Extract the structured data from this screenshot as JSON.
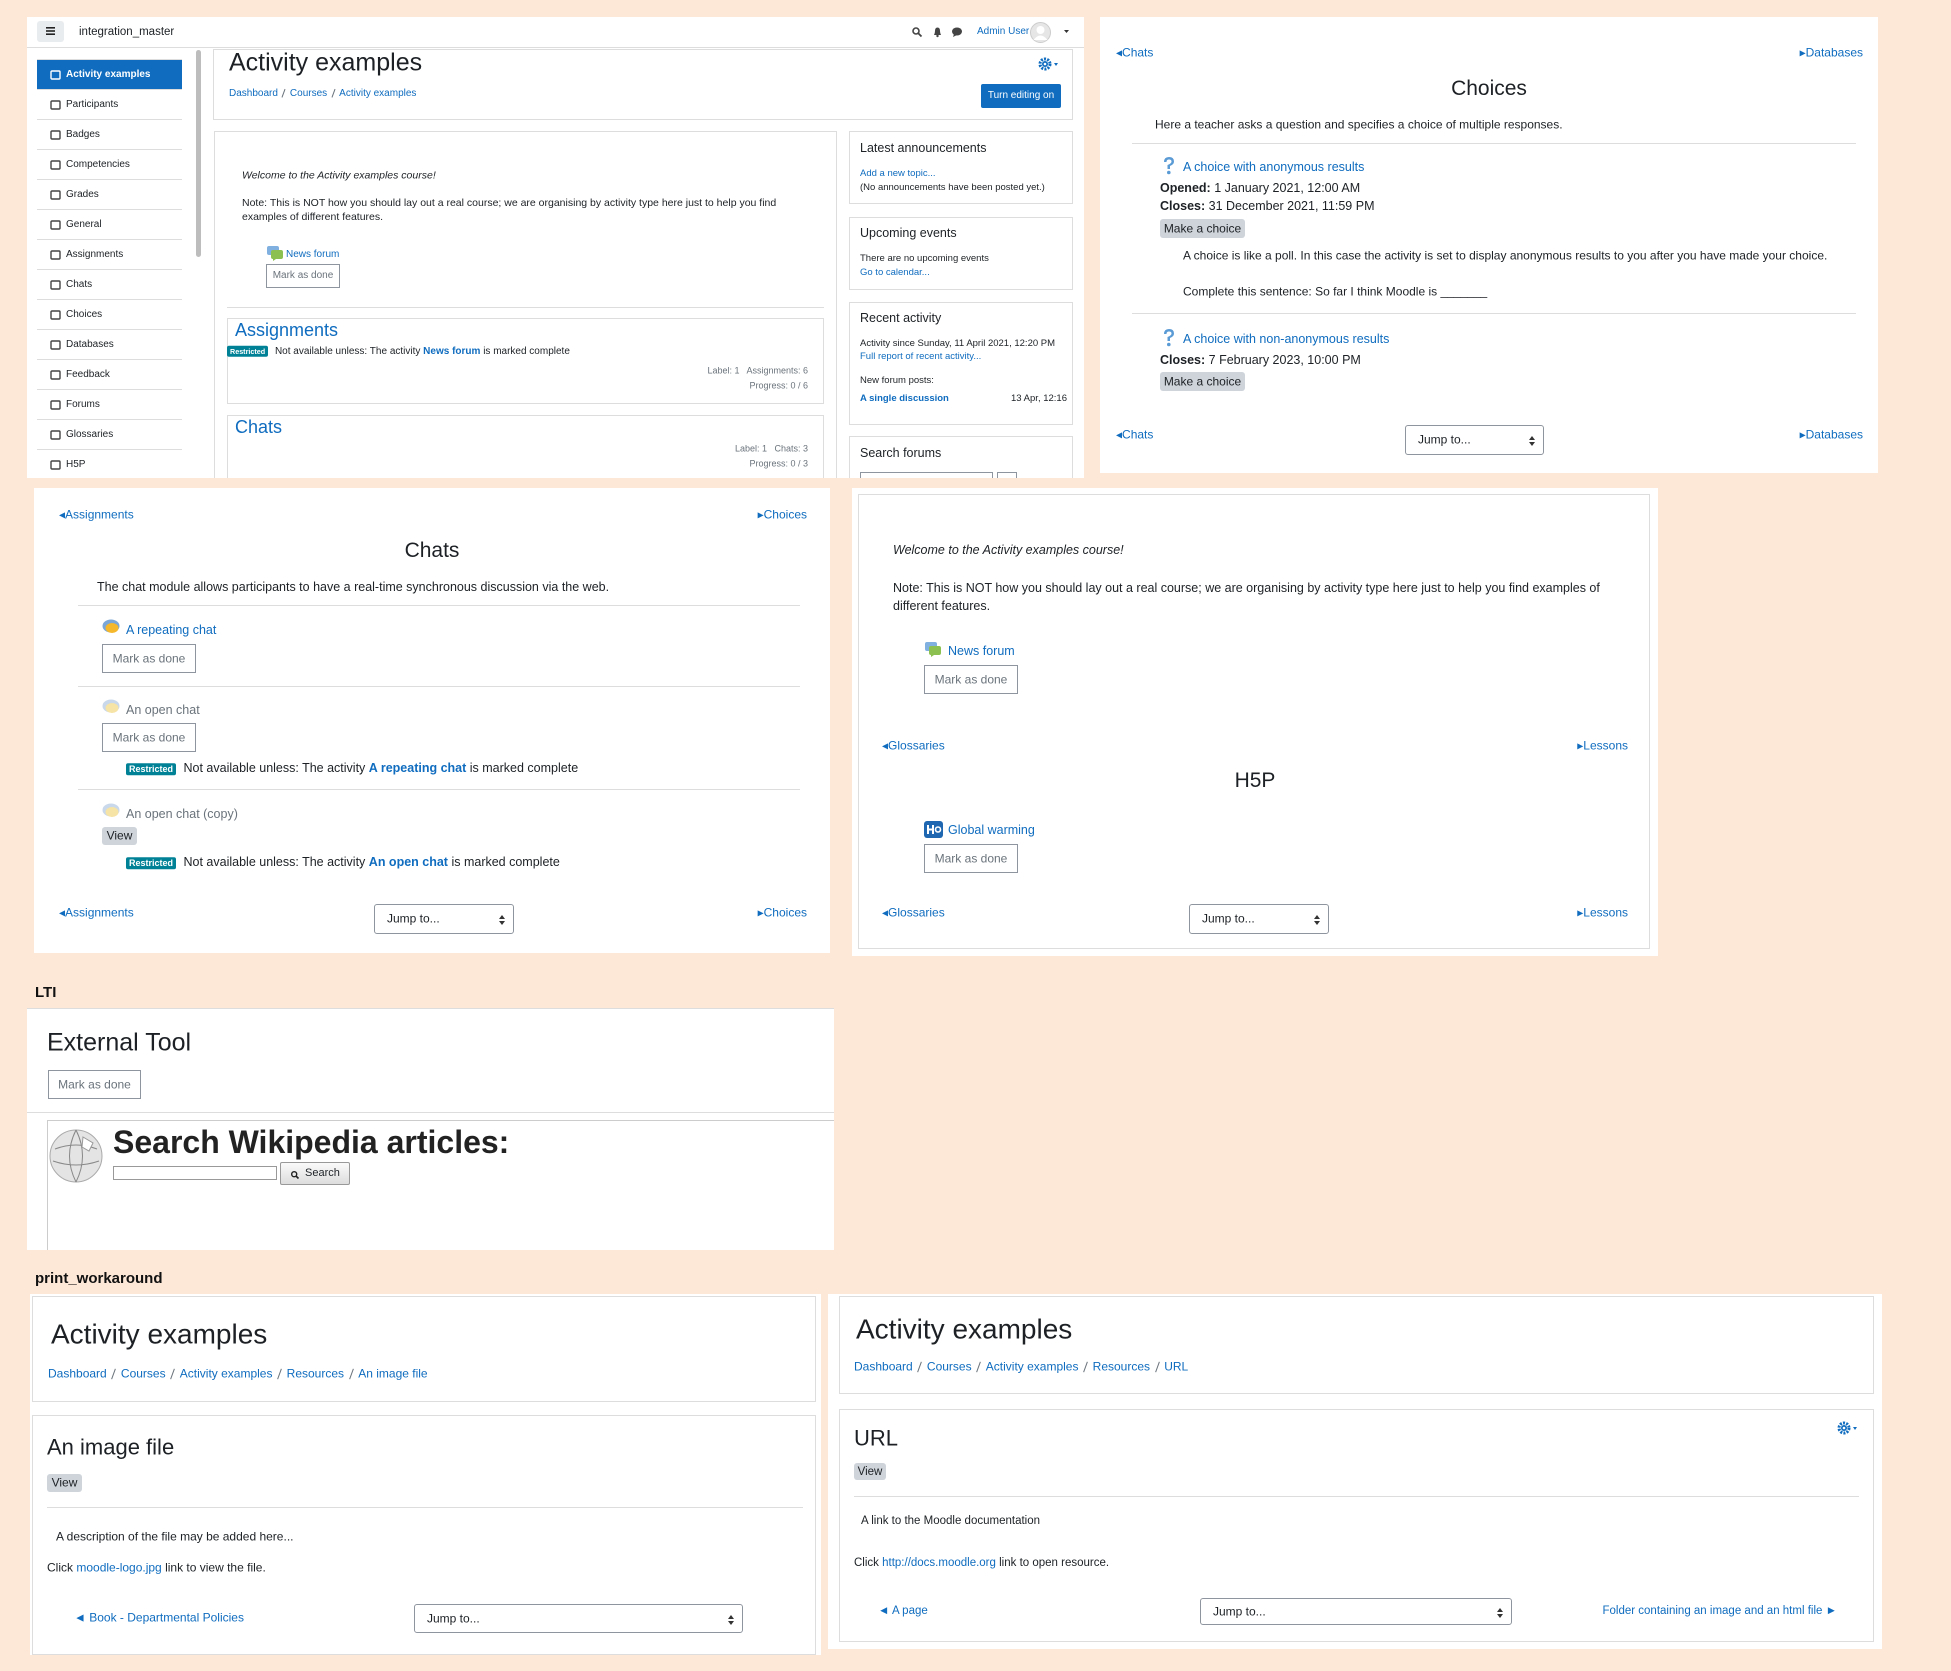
{
  "course_page": {
    "site_name": "integration_master",
    "user": "Admin User",
    "nav": [
      "Activity examples",
      "Participants",
      "Badges",
      "Competencies",
      "Grades",
      "General",
      "Assignments",
      "Chats",
      "Choices",
      "Databases",
      "Feedback",
      "Forums",
      "Glossaries",
      "H5P"
    ],
    "title": "Activity examples",
    "breadcrumb": [
      "Dashboard",
      "Courses",
      "Activity examples"
    ],
    "edit_button": "Turn editing on",
    "welcome": "Welcome to the Activity examples course!",
    "note": "Note: This is NOT how you should lay out a real course; we are organising by activity type here just to help you find examples of different features.",
    "forum": "News forum",
    "mark_as_done": "Mark as done",
    "sections": [
      {
        "name": "Assignments",
        "restricted": "Restricted",
        "restriction": [
          "Not available unless: The activity",
          "News forum",
          "is marked complete"
        ],
        "stats": "Label: 1   Assignments: 6",
        "progress": "Progress: 0 / 6"
      },
      {
        "name": "Chats",
        "stats": "Label: 1   Chats: 3",
        "progress": "Progress: 0 / 3"
      }
    ],
    "blocks": {
      "announcements": {
        "title": "Latest announcements",
        "link": "Add a new topic...",
        "text": "(No announcements have been posted yet.)"
      },
      "events": {
        "title": "Upcoming events",
        "text": "There are no upcoming events",
        "link": "Go to calendar..."
      },
      "recent": {
        "title": "Recent activity",
        "since": "Activity since Sunday, 11 April 2021, 12:20 PM",
        "link": "Full report of recent activity...",
        "posts": "New forum posts:",
        "post": "A single discussion",
        "post_date": "13 Apr, 12:16"
      },
      "search": {
        "title": "Search forums"
      }
    }
  },
  "choices_page": {
    "prev": "◂Chats",
    "next": "▸Databases",
    "title": "Choices",
    "description": "Here a teacher asks a question and specifies a choice of multiple responses.",
    "activities": [
      {
        "name": "A choice with anonymous results",
        "opened_label": "Opened:",
        "opened": "1 January 2021, 12:00 AM",
        "closes_label": "Closes:",
        "closes": "31 December 2021, 11:59 PM",
        "button": "Make a choice",
        "text": [
          "A choice is like a poll. In this case the activity is set to display anonymous results to you after you have made your choice.",
          "Complete this sentence: So far I think Moodle is _______"
        ]
      },
      {
        "name": "A choice with non-anonymous results",
        "closes_label": "Closes:",
        "closes": "7 February 2023, 10:00 PM",
        "button": "Make a choice"
      }
    ],
    "jump": "Jump to..."
  },
  "chats_page": {
    "prev": "◂Assignments",
    "next": "▸Choices",
    "title": "Chats",
    "description": "The chat module allows participants to have a real-time synchronous discussion via the web.",
    "activities": [
      {
        "name": "A repeating chat",
        "button": "Mark as done"
      },
      {
        "name": "An open chat",
        "button": "Mark as done",
        "restricted": "Restricted",
        "restriction": [
          "Not available unless: The activity",
          "A repeating chat",
          "is marked complete"
        ]
      },
      {
        "name": "An open chat (copy)",
        "button": "View",
        "restricted": "Restricted",
        "restriction": [
          "Not available unless: The activity",
          "An open chat",
          "is marked complete"
        ]
      }
    ],
    "jump": "Jump to..."
  },
  "h5p_page": {
    "welcome": "Welcome to the Activity examples course!",
    "note": "Note: This is NOT how you should lay out a real course; we are organising by activity type here just to help you find examples of different features.",
    "forum": "News forum",
    "forum_button": "Mark as done",
    "prev": "◂Glossaries",
    "next": "▸Lessons",
    "title": "H5P",
    "activity": "Global warming",
    "activity_button": "Mark as done",
    "jump": "Jump to..."
  },
  "lti": {
    "label": "LTI",
    "title": "External Tool",
    "button": "Mark as done",
    "heading": "Search Wikipedia articles:",
    "search": "Search"
  },
  "print_workaround": {
    "label": "print_workaround",
    "image_page": {
      "title": "Activity examples",
      "breadcrumb": [
        "Dashboard",
        "Courses",
        "Activity examples",
        "Resources",
        "An image file"
      ],
      "heading": "An image file",
      "button": "View",
      "description": "A description of the file may be added here...",
      "click": [
        "Click",
        "moodle-logo.jpg",
        "link to view the file."
      ],
      "prev": "◄ Book - Departmental Policies",
      "jump": "Jump to..."
    },
    "url_page": {
      "title": "Activity examples",
      "breadcrumb": [
        "Dashboard",
        "Courses",
        "Activity examples",
        "Resources",
        "URL"
      ],
      "heading": "URL",
      "button": "View",
      "description": "A link to the Moodle documentation",
      "click": [
        "Click",
        "http://docs.moodle.org",
        "link to open resource."
      ],
      "prev": "◄ A page",
      "jump": "Jump to...",
      "next": "Folder containing an image and an html file ►"
    }
  }
}
